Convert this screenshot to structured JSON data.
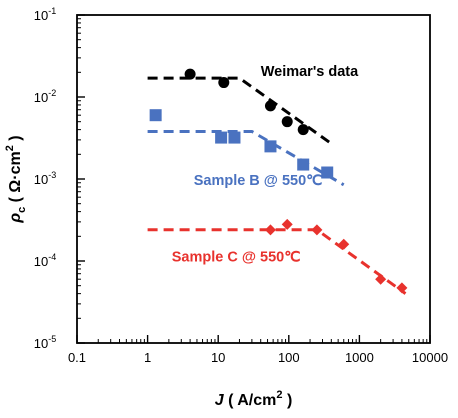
{
  "chart_data": {
    "type": "scatter",
    "x_scale": "log",
    "y_scale": "log",
    "xlim": [
      0.1,
      10000
    ],
    "ylim": [
      1e-05,
      0.1
    ],
    "x_ticks": [
      {
        "value": 0.1,
        "label": "0.1"
      },
      {
        "value": 1,
        "label": "1"
      },
      {
        "value": 10,
        "label": "10"
      },
      {
        "value": 100,
        "label": "100"
      },
      {
        "value": 1000,
        "label": "1000"
      },
      {
        "value": 10000,
        "label": "10000"
      }
    ],
    "y_ticks": [
      {
        "value": 0.1,
        "base": "10",
        "exp": "-1"
      },
      {
        "value": 0.01,
        "base": "10",
        "exp": "-2"
      },
      {
        "value": 0.001,
        "base": "10",
        "exp": "-3"
      },
      {
        "value": 0.0001,
        "base": "10",
        "exp": "-4"
      },
      {
        "value": 1e-05,
        "base": "10",
        "exp": "-5"
      }
    ],
    "xlabel": {
      "symbol": "J",
      "unit": " ( A/cm",
      "exp": "2",
      "close": " )"
    },
    "ylabel": {
      "symbol": "ρ",
      "sub": "c",
      "unit": " ( Ω·cm",
      "exp": "2",
      "close": " )"
    },
    "series": [
      {
        "name": "Weimar's data",
        "color": "#000000",
        "marker": "circle",
        "x": [
          4,
          12,
          55,
          95,
          160
        ],
        "y": [
          0.019,
          0.015,
          0.0078,
          0.005,
          0.004
        ],
        "fit": {
          "x": [
            1,
            20,
            400
          ],
          "y": [
            0.017,
            0.017,
            0.0027
          ]
        },
        "label_value": {
          "x": 40,
          "y": 0.018
        }
      },
      {
        "name": "Sample B @ 550℃",
        "color": "#4a72c0",
        "marker": "square",
        "x": [
          1.3,
          11,
          17,
          55,
          160,
          350
        ],
        "y": [
          0.006,
          0.0032,
          0.0032,
          0.0025,
          0.0015,
          0.0012
        ],
        "fit": {
          "x": [
            1,
            30,
            600
          ],
          "y": [
            0.0038,
            0.0038,
            0.00085
          ]
        },
        "label_value": {
          "x": 4.5,
          "y": 0.00085
        }
      },
      {
        "name": "Sample C @ 550℃",
        "color": "#e8322d",
        "marker": "diamond",
        "x": [
          55,
          95,
          250,
          600,
          2000,
          4000
        ],
        "y": [
          0.00024,
          0.00028,
          0.00024,
          0.00016,
          6e-05,
          4.7e-05
        ],
        "fit": {
          "x": [
            1,
            250,
            4500
          ],
          "y": [
            0.00024,
            0.00024,
            4e-05
          ]
        },
        "label_value": {
          "x": 2.2,
          "y": 9.8e-05
        }
      }
    ]
  }
}
